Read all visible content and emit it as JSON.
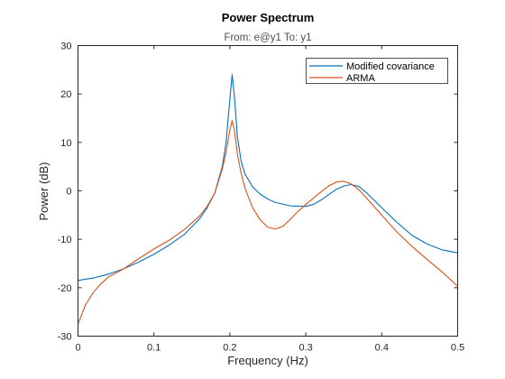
{
  "chart_data": {
    "type": "line",
    "title": "Power Spectrum",
    "subtitle": "From: e@y1  To: y1",
    "xlabel": "Frequency  (Hz)",
    "ylabel": "Power (dB)",
    "xlim": [
      0,
      0.5
    ],
    "ylim": [
      -30,
      30
    ],
    "xticks": [
      0,
      0.1,
      0.2,
      0.3,
      0.4,
      0.5
    ],
    "xtick_labels": [
      "0",
      "0.1",
      "0.2",
      "0.3",
      "0.4",
      "0.5"
    ],
    "yticks": [
      30,
      20,
      10,
      0,
      -10,
      -20,
      -30
    ],
    "ytick_labels": [
      "30",
      "20",
      "10",
      "0",
      "-10",
      "-20",
      "-30"
    ],
    "grid": false,
    "legend_position": "top-right",
    "series": [
      {
        "name": "Modified covariance",
        "color": "#0072BD",
        "x": [
          0,
          0.02,
          0.04,
          0.06,
          0.08,
          0.1,
          0.12,
          0.14,
          0.16,
          0.17,
          0.18,
          0.19,
          0.195,
          0.2,
          0.203,
          0.206,
          0.21,
          0.215,
          0.22,
          0.23,
          0.24,
          0.25,
          0.26,
          0.28,
          0.3,
          0.31,
          0.32,
          0.33,
          0.34,
          0.35,
          0.36,
          0.37,
          0.38,
          0.4,
          0.42,
          0.44,
          0.46,
          0.48,
          0.5
        ],
        "y": [
          -18.5,
          -18,
          -17.2,
          -16.1,
          -14.7,
          -13.1,
          -11.2,
          -9,
          -5.8,
          -3.5,
          -0.5,
          5,
          10,
          19,
          24,
          19.5,
          11,
          6,
          3.5,
          0.8,
          -0.7,
          -1.7,
          -2.4,
          -3.1,
          -3.2,
          -2.8,
          -1.9,
          -0.8,
          0.3,
          1,
          1.3,
          0.9,
          -0.4,
          -3.5,
          -6.5,
          -9.2,
          -11,
          -12.2,
          -12.8
        ]
      },
      {
        "name": "ARMA",
        "color": "#D95319",
        "x": [
          0,
          0.01,
          0.02,
          0.03,
          0.04,
          0.06,
          0.08,
          0.1,
          0.12,
          0.14,
          0.16,
          0.17,
          0.18,
          0.19,
          0.195,
          0.2,
          0.203,
          0.206,
          0.21,
          0.215,
          0.22,
          0.23,
          0.24,
          0.25,
          0.26,
          0.27,
          0.28,
          0.29,
          0.3,
          0.31,
          0.32,
          0.33,
          0.34,
          0.35,
          0.36,
          0.37,
          0.38,
          0.4,
          0.42,
          0.44,
          0.46,
          0.48,
          0.5
        ],
        "y": [
          -27.5,
          -23.5,
          -21,
          -19.2,
          -17.8,
          -16.1,
          -14,
          -12,
          -10.2,
          -8,
          -5.2,
          -3.2,
          -0.5,
          4.5,
          8,
          12.5,
          14.5,
          12.5,
          7.5,
          3.5,
          0.5,
          -3.5,
          -6,
          -7.5,
          -7.9,
          -7.3,
          -5.8,
          -4.2,
          -2.8,
          -1.5,
          -0.2,
          1,
          1.8,
          2,
          1.4,
          0.2,
          -1.5,
          -5,
          -8.5,
          -11.5,
          -14.2,
          -16.8,
          -19.7
        ]
      }
    ]
  }
}
